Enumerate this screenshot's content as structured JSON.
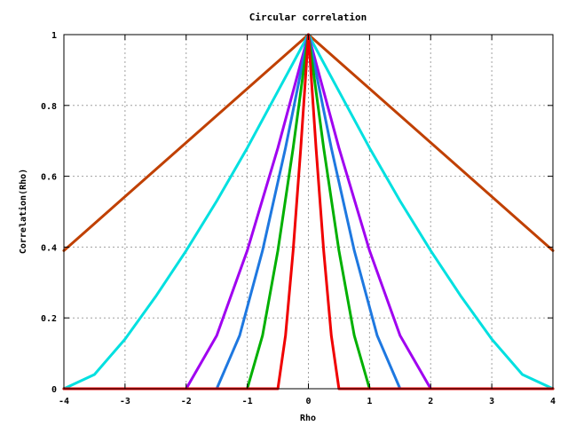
{
  "chart_data": {
    "type": "line",
    "title": "Circular correlation",
    "xlabel": "Rho",
    "ylabel": "Correlation(Rho)",
    "xlim": [
      -4,
      4
    ],
    "ylim": [
      0,
      1
    ],
    "xticks": [
      -4,
      -3,
      -2,
      -1,
      0,
      1,
      2,
      3,
      4
    ],
    "yticks": [
      0,
      0.2,
      0.4,
      0.6,
      0.8,
      1
    ],
    "ytick_labels": [
      "0",
      "0.2",
      "0.4",
      "0.6",
      "0.8",
      "1"
    ],
    "grid": true,
    "legend": "none",
    "series": [
      {
        "color": "#c04000",
        "x": [
          -4,
          0,
          4
        ],
        "y": [
          0.39,
          1,
          0.39
        ]
      },
      {
        "color": "#00e0e0",
        "x": [
          -4,
          -3.5,
          -3,
          -2.5,
          -2,
          -1.5,
          -1,
          -0.5,
          0,
          0.5,
          1,
          1.5,
          2,
          2.5,
          3,
          3.5,
          4
        ],
        "y": [
          0,
          0.04,
          0.14,
          0.26,
          0.39,
          0.53,
          0.68,
          0.84,
          1,
          0.84,
          0.68,
          0.53,
          0.39,
          0.26,
          0.14,
          0.04,
          0
        ]
      },
      {
        "color": "#a000f0",
        "x": [
          -4,
          -2,
          -1.5,
          -1,
          -0.5,
          0,
          0.5,
          1,
          1.5,
          2,
          4
        ],
        "y": [
          0,
          0,
          0.15,
          0.39,
          0.68,
          1,
          0.68,
          0.39,
          0.15,
          0,
          0
        ]
      },
      {
        "color": "#1e78e0",
        "x": [
          -4,
          -1.5,
          -1.125,
          -0.75,
          -0.375,
          0,
          0.375,
          0.75,
          1.125,
          1.5,
          4
        ],
        "y": [
          0,
          0,
          0.15,
          0.39,
          0.68,
          1,
          0.68,
          0.39,
          0.15,
          0,
          0
        ]
      },
      {
        "color": "#00b000",
        "x": [
          -4,
          -1,
          -0.75,
          -0.5,
          -0.25,
          0,
          0.25,
          0.5,
          0.75,
          1,
          4
        ],
        "y": [
          0,
          0,
          0.15,
          0.39,
          0.68,
          1,
          0.68,
          0.39,
          0.15,
          0,
          0
        ]
      },
      {
        "color": "#f00000",
        "x": [
          -4,
          -0.5,
          -0.375,
          -0.25,
          -0.125,
          0,
          0.125,
          0.25,
          0.375,
          0.5,
          4
        ],
        "y": [
          0,
          0,
          0.15,
          0.39,
          0.68,
          1,
          0.68,
          0.39,
          0.15,
          0,
          0
        ]
      }
    ]
  }
}
